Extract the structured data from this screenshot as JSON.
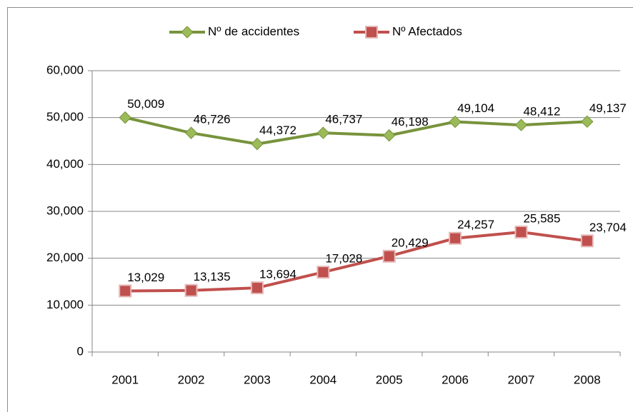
{
  "chart_data": {
    "type": "line",
    "categories": [
      "2001",
      "2002",
      "2003",
      "2004",
      "2005",
      "2006",
      "2007",
      "2008"
    ],
    "series": [
      {
        "name": "Nº de accidentes",
        "color": "#77933c",
        "marker": "diamond",
        "values": [
          50009,
          46726,
          44372,
          46737,
          46198,
          49104,
          48412,
          49137
        ],
        "value_labels": [
          "50,009",
          "46,726",
          "44,372",
          "46,737",
          "46,198",
          "49,104",
          "48,412",
          "49,137"
        ]
      },
      {
        "name": "Nº Afectados",
        "color": "#c0504d",
        "marker": "square",
        "values": [
          13029,
          13135,
          13694,
          17028,
          20429,
          24257,
          25585,
          23704
        ],
        "value_labels": [
          "13,029",
          "13,135",
          "13,694",
          "17,028",
          "20,429",
          "24,257",
          "25,585",
          "23,704"
        ]
      }
    ],
    "ylim": [
      0,
      60000
    ],
    "yticks": [
      0,
      {
        "value": 10000,
        "label": "10,000"
      },
      {
        "value": 20000,
        "label": "20,000"
      },
      {
        "value": 30000,
        "label": "30,000"
      },
      {
        "value": 40000,
        "label": "40,000"
      },
      {
        "value": 50000,
        "label": "50,000"
      },
      {
        "value": 60000,
        "label": "60,000"
      }
    ],
    "grid": true,
    "legend": "top"
  }
}
